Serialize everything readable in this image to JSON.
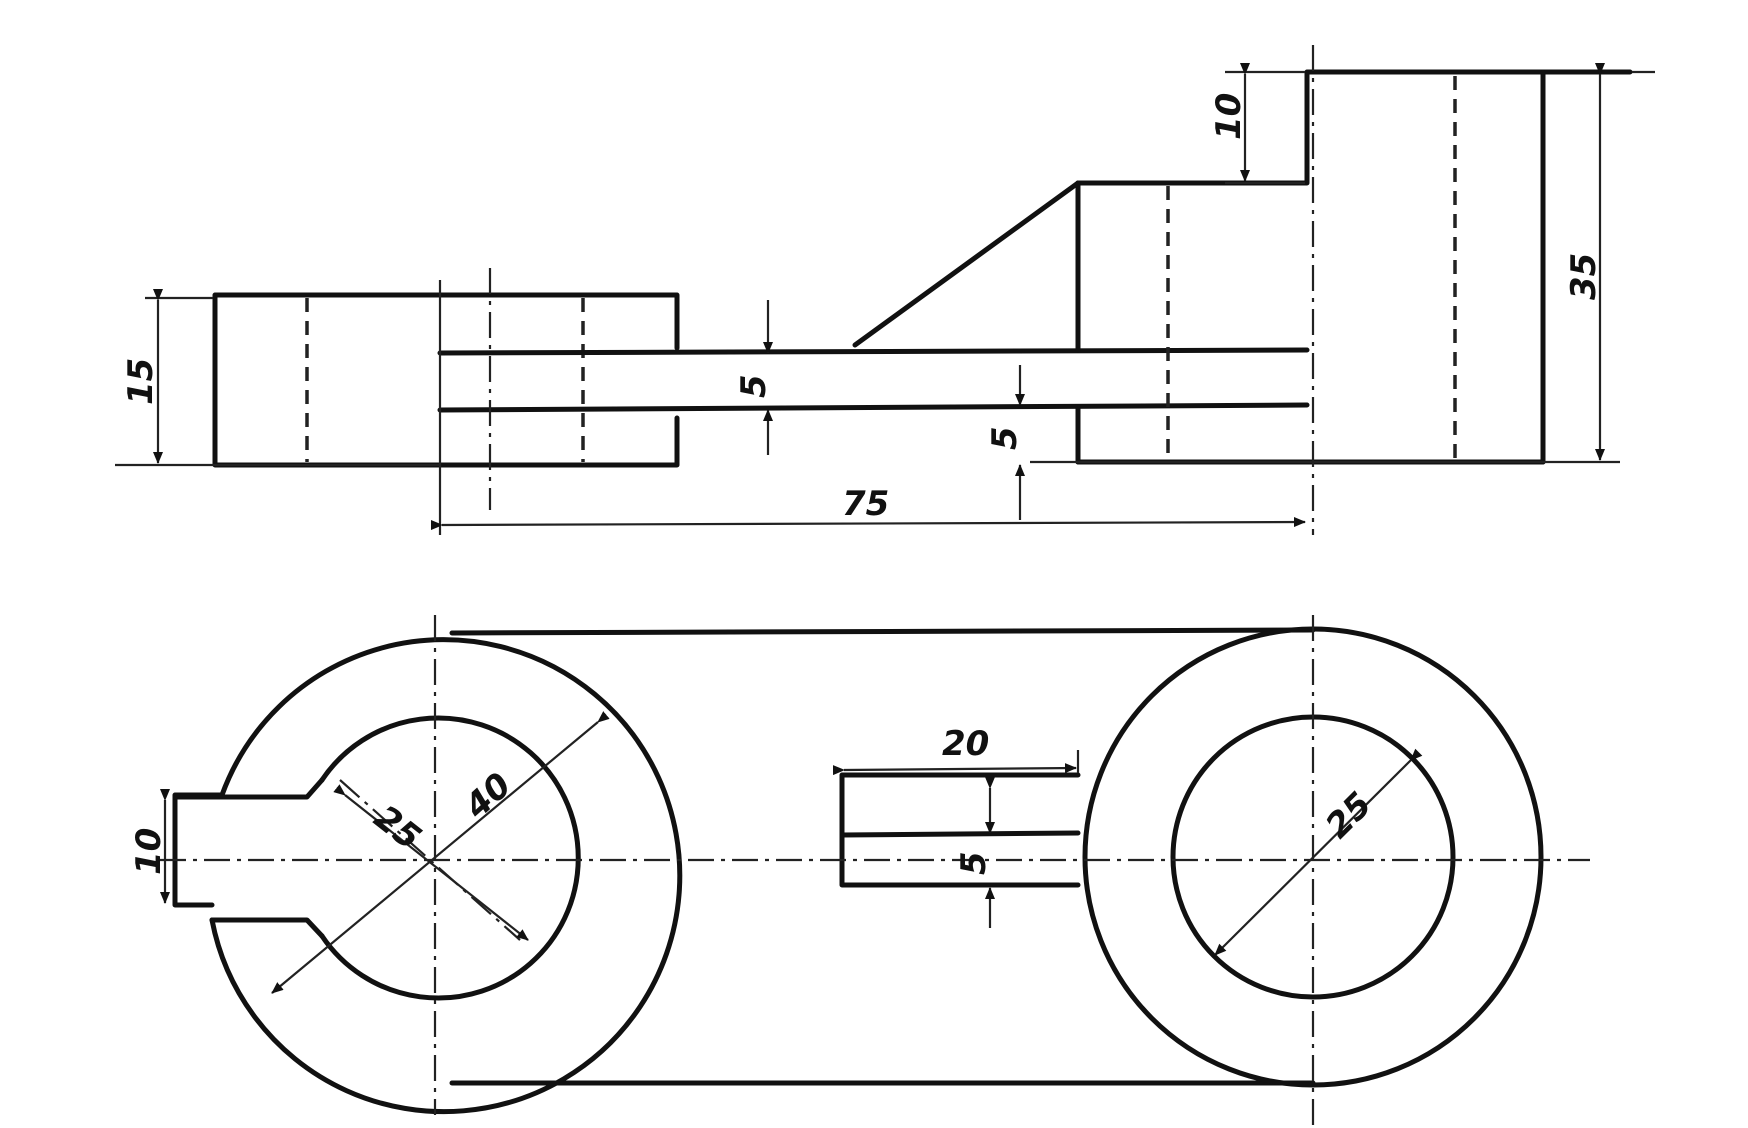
{
  "drawing": {
    "dimensions": {
      "front_height_left": "15",
      "slot_gap": "5",
      "web_thickness": "5",
      "overall_length": "75",
      "step_height": "10",
      "total_height": "35",
      "top_slot_width": "10",
      "hole_left": "25",
      "boss_left": "40",
      "slot_length": "20",
      "slot_width": "5",
      "hole_right": "25"
    }
  }
}
